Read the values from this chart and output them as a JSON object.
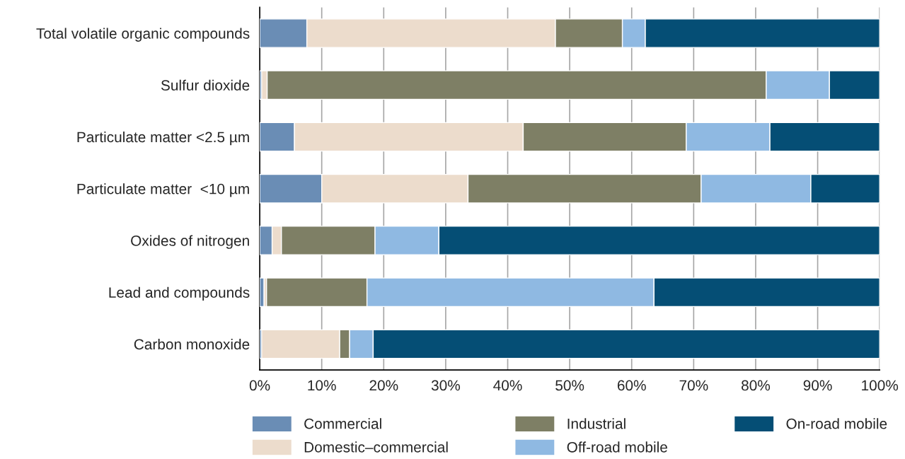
{
  "chart_data": {
    "type": "bar",
    "orientation": "horizontal",
    "stacked": true,
    "categories": [
      "Total volatile organic compounds",
      "Sulfur dioxide",
      "Particulate matter <2.5 µm",
      "Particulate matter  <10 µm",
      "Oxides of nitrogen",
      "Lead and compounds",
      "Carbon monoxide"
    ],
    "series": [
      {
        "name": "Commercial",
        "color": "#6a8db5",
        "values": [
          7.6,
          0.3,
          5.6,
          10.0,
          2.0,
          0.7,
          0.3
        ]
      },
      {
        "name": "Domestic–commercial",
        "color": "#ecdccc",
        "values": [
          40.1,
          0.9,
          36.9,
          23.6,
          1.5,
          0.4,
          12.6
        ]
      },
      {
        "name": "Industrial",
        "color": "#7e7f65",
        "values": [
          10.8,
          80.5,
          26.3,
          37.6,
          15.1,
          16.2,
          1.6
        ]
      },
      {
        "name": "Off-road mobile",
        "color": "#8fb9e2",
        "values": [
          3.7,
          10.2,
          13.5,
          17.7,
          10.3,
          46.3,
          3.8
        ]
      },
      {
        "name": "On-road mobile",
        "color": "#054e75",
        "values": [
          37.8,
          8.1,
          17.7,
          11.1,
          71.1,
          36.4,
          81.7
        ]
      }
    ],
    "xlim": [
      0,
      100
    ],
    "xticks": [
      {
        "value": 0,
        "label": "0%"
      },
      {
        "value": 10,
        "label": "10%"
      },
      {
        "value": 20,
        "label": "20%"
      },
      {
        "value": 30,
        "label": "30%"
      },
      {
        "value": 40,
        "label": "40%"
      },
      {
        "value": 50,
        "label": "50%"
      },
      {
        "value": 60,
        "label": "60%"
      },
      {
        "value": 70,
        "label": "70%"
      },
      {
        "value": 80,
        "label": "80%"
      },
      {
        "value": 90,
        "label": "90%"
      },
      {
        "value": 100,
        "label": "100%"
      }
    ],
    "grid": "x",
    "legend": "bottom"
  }
}
